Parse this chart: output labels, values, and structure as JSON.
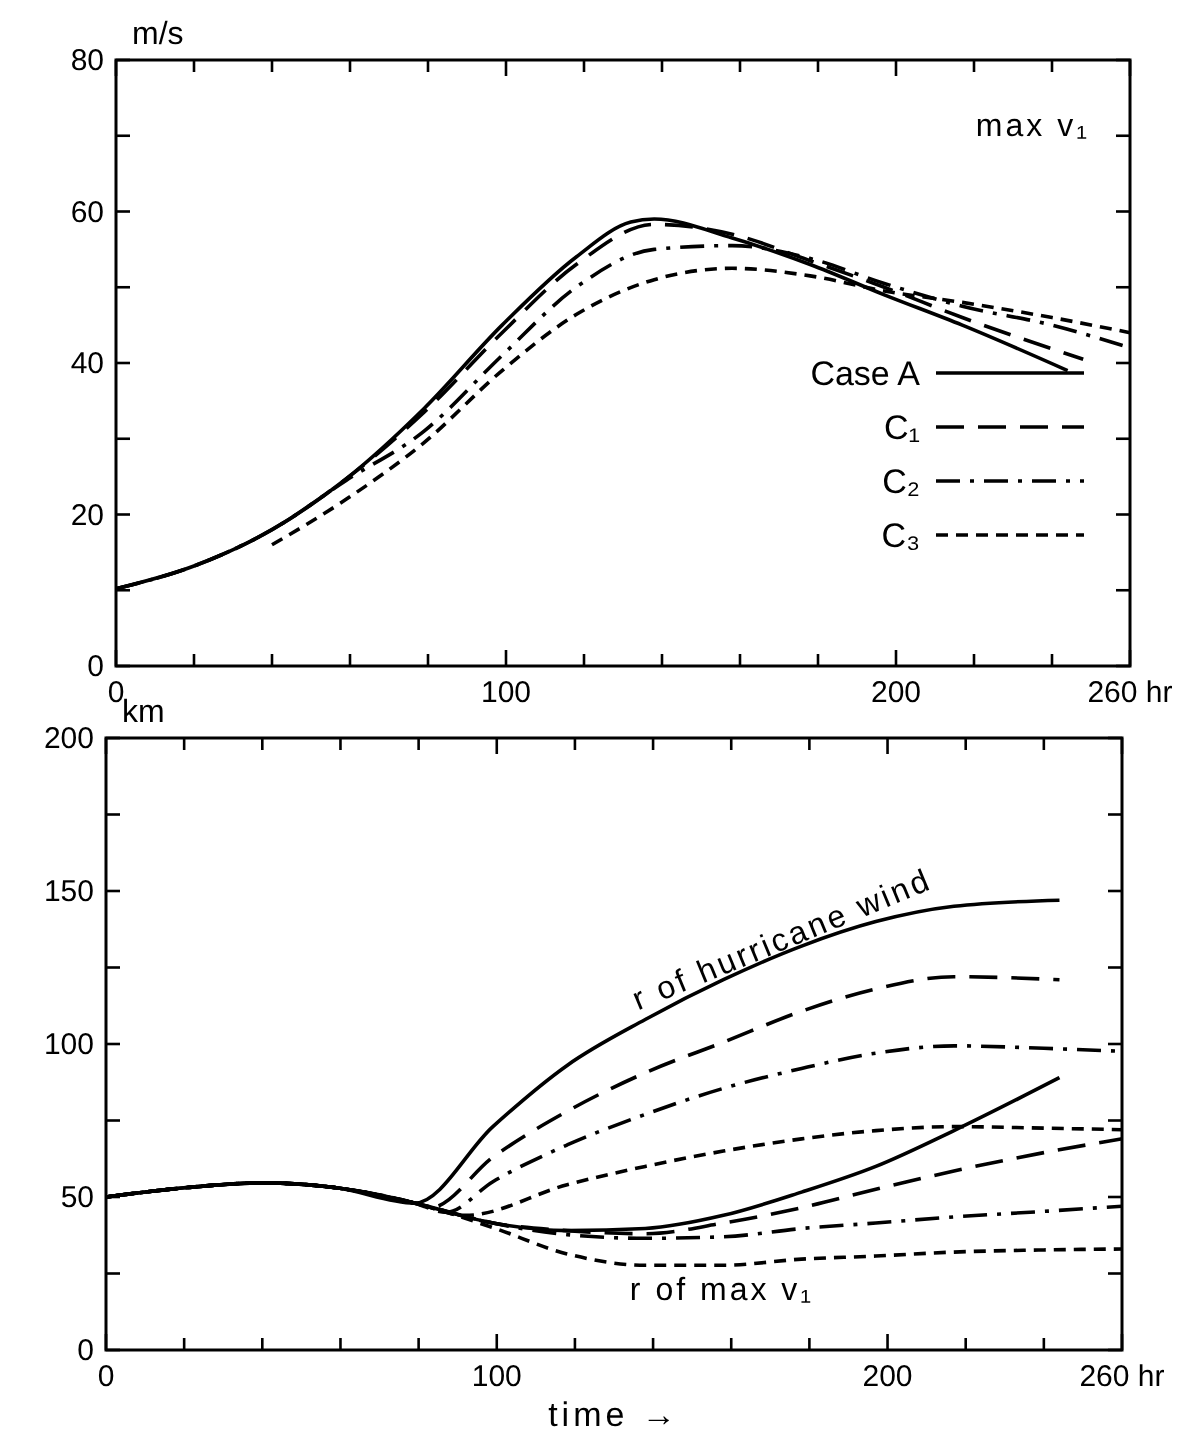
{
  "chart_data": [
    {
      "type": "line",
      "ylabel": "m/s",
      "annotations": [
        "max v₁"
      ],
      "legend": "right",
      "xlim": [
        0,
        260
      ],
      "ylim": [
        0,
        80
      ],
      "xticks": [
        0,
        {
          "value": 20,
          "label": null
        },
        {
          "value": 40,
          "label": null
        },
        {
          "value": 60,
          "label": null
        },
        {
          "value": 80,
          "label": null
        },
        100,
        {
          "value": 120,
          "label": null
        },
        {
          "value": 140,
          "label": null
        },
        {
          "value": 160,
          "label": null
        },
        {
          "value": 180,
          "label": null
        },
        200,
        {
          "value": 220,
          "label": null
        },
        {
          "value": 240,
          "label": null
        },
        {
          "value": 260,
          "label": "260 hr"
        }
      ],
      "yticks": [
        0,
        {
          "value": 10,
          "label": null
        },
        20,
        {
          "value": 30,
          "label": null
        },
        40,
        {
          "value": 50,
          "label": null
        },
        60,
        {
          "value": 70,
          "label": null
        },
        80
      ],
      "series": [
        {
          "name": "Case A",
          "color": "#000000",
          "line_style": "solid",
          "x": [
            0,
            20,
            40,
            59,
            79,
            99,
            118,
            132,
            138,
            158,
            178,
            197,
            217,
            244
          ],
          "values": [
            10.2,
            13.2,
            18,
            24.7,
            34,
            45,
            54,
            58.6,
            59,
            56.5,
            53,
            49,
            45,
            39
          ]
        },
        {
          "name": "C₁",
          "color": "#000000",
          "line_style": "longdash",
          "x": [
            0,
            20,
            40,
            59,
            79,
            99,
            118,
            138,
            158,
            178,
            197,
            217,
            248
          ],
          "values": [
            10.2,
            13.2,
            18,
            24.7,
            33.5,
            44,
            53,
            58.3,
            57,
            53.5,
            50,
            46,
            40.5
          ]
        },
        {
          "name": "C₂",
          "color": "#000000",
          "line_style": "dashdot",
          "x": [
            0,
            20,
            40,
            59,
            79,
            99,
            118,
            138,
            158,
            178,
            197,
            217,
            240,
            260
          ],
          "values": [
            10.2,
            13.2,
            18,
            24.5,
            31,
            41,
            50,
            55,
            55.5,
            53.8,
            50.5,
            47.5,
            45,
            42
          ]
        },
        {
          "name": "C₃",
          "color": "#000000",
          "line_style": "dashed",
          "x": [
            40,
            59,
            79,
            99,
            118,
            138,
            158,
            178,
            197,
            217,
            240,
            260
          ],
          "values": [
            16,
            22,
            29.5,
            39,
            46.4,
            51,
            52.5,
            51.5,
            49.5,
            48,
            46,
            44
          ]
        }
      ]
    },
    {
      "type": "line",
      "xlabel": "time →",
      "ylabel": "km",
      "annotations": [
        {
          "text": "r of hurricane wind",
          "x": 174,
          "y": 131
        },
        "r of max v₁"
      ],
      "xlim": [
        0,
        260
      ],
      "ylim": [
        0,
        200
      ],
      "xticks": [
        0,
        {
          "value": 20,
          "label": null
        },
        {
          "value": 40,
          "label": null
        },
        {
          "value": 60,
          "label": null
        },
        {
          "value": 80,
          "label": null
        },
        100,
        {
          "value": 120,
          "label": null
        },
        {
          "value": 140,
          "label": null
        },
        {
          "value": 160,
          "label": null
        },
        {
          "value": 180,
          "label": null
        },
        200,
        {
          "value": 220,
          "label": null
        },
        {
          "value": 240,
          "label": null
        },
        {
          "value": 260,
          "label": "260 hr"
        }
      ],
      "yticks": [
        0,
        {
          "value": 25,
          "label": null
        },
        50,
        {
          "value": 75,
          "label": null
        },
        100,
        {
          "value": 125,
          "label": null
        },
        150,
        {
          "value": 175,
          "label": null
        },
        200
      ],
      "series": [
        {
          "color": "#000000",
          "line_style": "solid",
          "x": [
            0,
            20,
            40,
            59,
            79,
            99,
            118,
            138,
            158,
            178,
            197,
            217,
            244
          ],
          "values": [
            50,
            53,
            54.6,
            53,
            48,
            73,
            93,
            108,
            121,
            132,
            140,
            145,
            147
          ]
        },
        {
          "color": "#000000",
          "line_style": "longdash",
          "x": [
            0,
            20,
            40,
            59,
            79,
            83,
            99,
            118,
            138,
            158,
            178,
            197,
            217,
            244
          ],
          "values": [
            50,
            53,
            54.6,
            53,
            48,
            46.5,
            63,
            78,
            90.6,
            100.6,
            110.7,
            118,
            122,
            121
          ]
        },
        {
          "color": "#000000",
          "line_style": "dashdot",
          "x": [
            0,
            20,
            40,
            59,
            79,
            87,
            99,
            118,
            138,
            158,
            178,
            197,
            217,
            240,
            260
          ],
          "values": [
            50,
            53,
            54.6,
            53,
            48,
            45,
            55,
            67,
            77,
            85.5,
            92,
            97,
            99.4,
            98.6,
            97.6
          ]
        },
        {
          "color": "#000000",
          "line_style": "dashed",
          "x": [
            0,
            20,
            40,
            59,
            79,
            92,
            118,
            138,
            158,
            178,
            197,
            217,
            240,
            260
          ],
          "values": [
            50,
            53,
            54.6,
            53,
            48,
            44,
            54,
            60,
            65,
            69,
            71.7,
            73,
            72.5,
            72
          ]
        },
        {
          "color": "#000000",
          "line_style": "solid",
          "x": [
            0,
            20,
            40,
            59,
            79,
            99,
            118,
            138,
            158,
            178,
            197,
            217,
            244
          ],
          "values": [
            50,
            53,
            54.6,
            53,
            48,
            41.5,
            39,
            39.7,
            44,
            51.6,
            60,
            71.7,
            89
          ]
        },
        {
          "color": "#000000",
          "line_style": "longdash",
          "x": [
            0,
            20,
            40,
            59,
            79,
            99,
            118,
            138,
            158,
            178,
            197,
            217,
            240,
            260
          ],
          "values": [
            50,
            53,
            54.6,
            53,
            48,
            41.5,
            39,
            38,
            41.5,
            46.5,
            52.5,
            58.5,
            64.5,
            69
          ]
        },
        {
          "color": "#000000",
          "line_style": "dashdot",
          "x": [
            0,
            20,
            40,
            59,
            79,
            99,
            118,
            138,
            158,
            178,
            197,
            217,
            240,
            260
          ],
          "values": [
            50,
            53,
            54.6,
            53,
            48,
            41.5,
            37.7,
            36.5,
            37,
            39.7,
            41.5,
            43.5,
            45.3,
            47
          ]
        },
        {
          "color": "#000000",
          "line_style": "dashed",
          "x": [
            0,
            20,
            40,
            59,
            79,
            99,
            118,
            138,
            158,
            178,
            197,
            217,
            240,
            260
          ],
          "values": [
            50,
            53,
            54.6,
            53,
            48,
            40,
            31.4,
            27.7,
            27.7,
            29.7,
            30.7,
            32,
            32.7,
            33
          ]
        }
      ]
    }
  ]
}
